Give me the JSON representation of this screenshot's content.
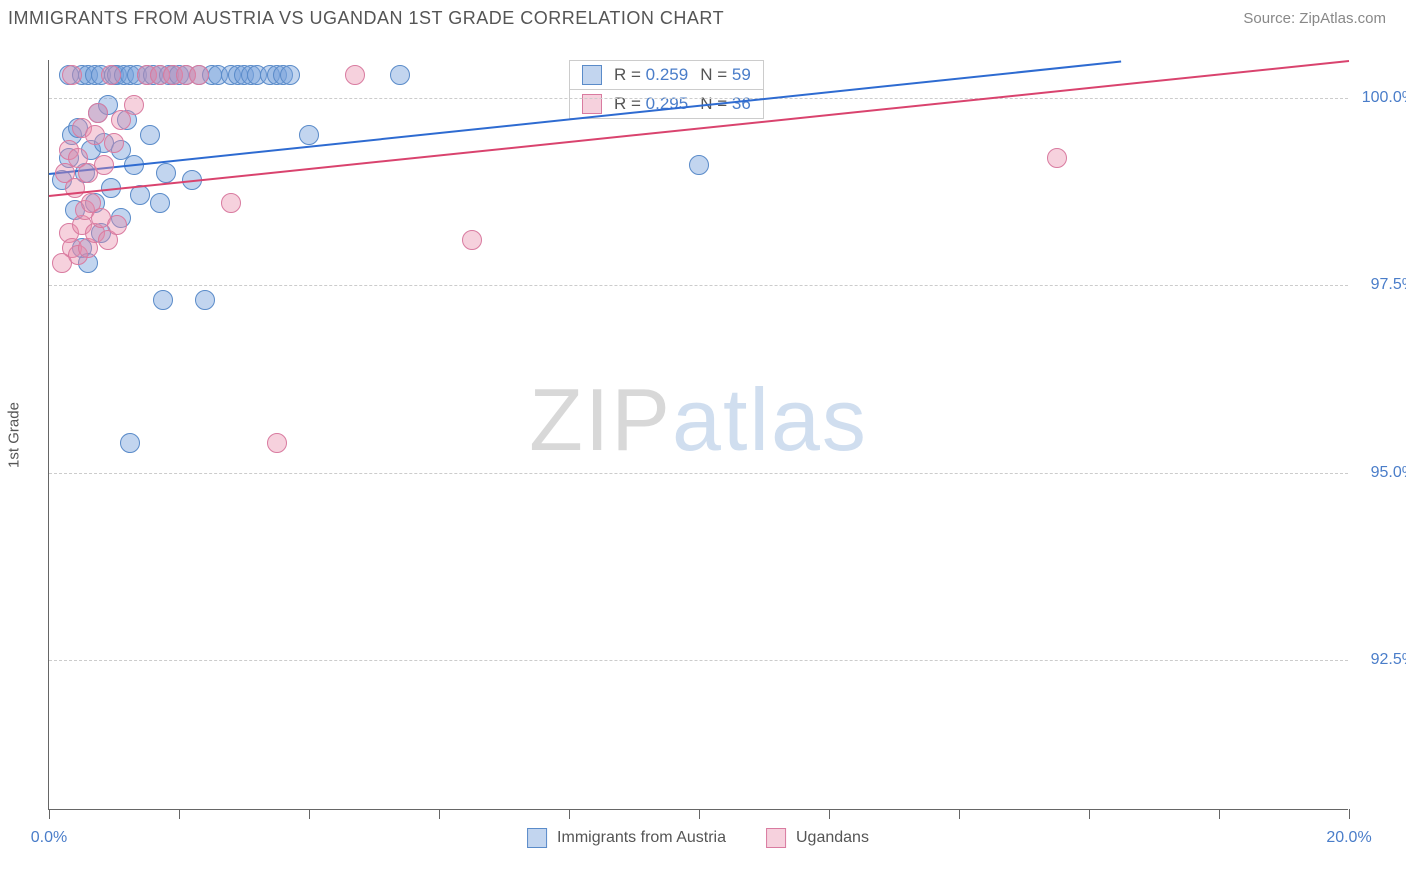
{
  "header": {
    "title": "IMMIGRANTS FROM AUSTRIA VS UGANDAN 1ST GRADE CORRELATION CHART",
    "source_label": "Source:",
    "source_name": "ZipAtlas.com"
  },
  "chart": {
    "type": "scatter",
    "ylabel": "1st Grade",
    "xlim": [
      0.0,
      20.0
    ],
    "ylim": [
      90.5,
      100.5
    ],
    "xtick_positions": [
      0,
      2,
      4,
      6,
      8,
      10,
      12,
      14,
      16,
      18,
      20
    ],
    "xtick_labels": {
      "0": "0.0%",
      "20": "20.0%"
    },
    "ytick_positions": [
      92.5,
      95.0,
      97.5,
      100.0
    ],
    "ytick_labels": [
      "92.5%",
      "95.0%",
      "97.5%",
      "100.0%"
    ],
    "grid_color": "#cccccc",
    "axis_color": "#666666",
    "background_color": "#ffffff",
    "watermark": {
      "part1": "ZIP",
      "part2": "atlas"
    },
    "series": [
      {
        "name": "Immigrants from Austria",
        "fill": "rgba(120,162,219,0.45)",
        "stroke": "#5a8bc9",
        "marker_radius": 10,
        "trend": {
          "x1": 0,
          "y1": 99.0,
          "x2": 16.5,
          "y2": 100.5,
          "color": "#2e6bd1",
          "width": 2
        },
        "stats": {
          "R_label": "R =",
          "R": "0.259",
          "N_label": "N =",
          "N": "59"
        },
        "points": [
          [
            0.2,
            98.9
          ],
          [
            0.3,
            99.2
          ],
          [
            0.3,
            100.3
          ],
          [
            0.35,
            99.5
          ],
          [
            0.4,
            98.5
          ],
          [
            0.45,
            99.6
          ],
          [
            0.5,
            100.3
          ],
          [
            0.5,
            98.0
          ],
          [
            0.55,
            99.0
          ],
          [
            0.6,
            100.3
          ],
          [
            0.6,
            97.8
          ],
          [
            0.65,
            99.3
          ],
          [
            0.7,
            98.6
          ],
          [
            0.7,
            100.3
          ],
          [
            0.75,
            99.8
          ],
          [
            0.8,
            98.2
          ],
          [
            0.8,
            100.3
          ],
          [
            0.85,
            99.4
          ],
          [
            0.9,
            99.9
          ],
          [
            0.95,
            98.8
          ],
          [
            1.0,
            100.3
          ],
          [
            1.05,
            100.3
          ],
          [
            1.1,
            99.3
          ],
          [
            1.1,
            98.4
          ],
          [
            1.15,
            100.3
          ],
          [
            1.2,
            99.7
          ],
          [
            1.25,
            100.3
          ],
          [
            1.25,
            95.4
          ],
          [
            1.3,
            99.1
          ],
          [
            1.35,
            100.3
          ],
          [
            1.4,
            98.7
          ],
          [
            1.5,
            100.3
          ],
          [
            1.55,
            99.5
          ],
          [
            1.6,
            100.3
          ],
          [
            1.7,
            98.6
          ],
          [
            1.7,
            100.3
          ],
          [
            1.75,
            97.3
          ],
          [
            1.8,
            99.0
          ],
          [
            1.85,
            100.3
          ],
          [
            1.9,
            100.3
          ],
          [
            2.0,
            100.3
          ],
          [
            2.1,
            100.3
          ],
          [
            2.2,
            98.9
          ],
          [
            2.3,
            100.3
          ],
          [
            2.4,
            97.3
          ],
          [
            2.5,
            100.3
          ],
          [
            2.6,
            100.3
          ],
          [
            2.8,
            100.3
          ],
          [
            2.9,
            100.3
          ],
          [
            3.0,
            100.3
          ],
          [
            3.1,
            100.3
          ],
          [
            3.2,
            100.3
          ],
          [
            3.4,
            100.3
          ],
          [
            3.5,
            100.3
          ],
          [
            3.6,
            100.3
          ],
          [
            3.7,
            100.3
          ],
          [
            4.0,
            99.5
          ],
          [
            5.4,
            100.3
          ],
          [
            10.0,
            99.1
          ]
        ]
      },
      {
        "name": "Ugandans",
        "fill": "rgba(232,140,170,0.40)",
        "stroke": "#d97ba0",
        "marker_radius": 10,
        "trend": {
          "x1": 0,
          "y1": 98.7,
          "x2": 20,
          "y2": 100.5,
          "color": "#d9436e",
          "width": 2
        },
        "stats": {
          "R_label": "R =",
          "R": "0.295",
          "N_label": "N =",
          "N": "36"
        },
        "points": [
          [
            0.2,
            97.8
          ],
          [
            0.25,
            99.0
          ],
          [
            0.3,
            98.2
          ],
          [
            0.3,
            99.3
          ],
          [
            0.35,
            98.0
          ],
          [
            0.35,
            100.3
          ],
          [
            0.4,
            98.8
          ],
          [
            0.45,
            99.2
          ],
          [
            0.45,
            97.9
          ],
          [
            0.5,
            98.3
          ],
          [
            0.5,
            99.6
          ],
          [
            0.55,
            98.5
          ],
          [
            0.6,
            99.0
          ],
          [
            0.6,
            98.0
          ],
          [
            0.65,
            98.6
          ],
          [
            0.7,
            99.5
          ],
          [
            0.7,
            98.2
          ],
          [
            0.75,
            99.8
          ],
          [
            0.8,
            98.4
          ],
          [
            0.85,
            99.1
          ],
          [
            0.9,
            98.1
          ],
          [
            0.95,
            100.3
          ],
          [
            1.0,
            99.4
          ],
          [
            1.05,
            98.3
          ],
          [
            1.1,
            99.7
          ],
          [
            1.3,
            99.9
          ],
          [
            1.5,
            100.3
          ],
          [
            1.7,
            100.3
          ],
          [
            1.9,
            100.3
          ],
          [
            2.1,
            100.3
          ],
          [
            2.3,
            100.3
          ],
          [
            2.8,
            98.6
          ],
          [
            3.5,
            95.4
          ],
          [
            4.7,
            100.3
          ],
          [
            6.5,
            98.1
          ],
          [
            15.5,
            99.2
          ]
        ]
      }
    ],
    "legend": [
      {
        "label": "Immigrants from Austria",
        "fill": "rgba(120,162,219,0.45)",
        "stroke": "#5a8bc9"
      },
      {
        "label": "Ugandans",
        "fill": "rgba(232,140,170,0.40)",
        "stroke": "#d97ba0"
      }
    ]
  }
}
